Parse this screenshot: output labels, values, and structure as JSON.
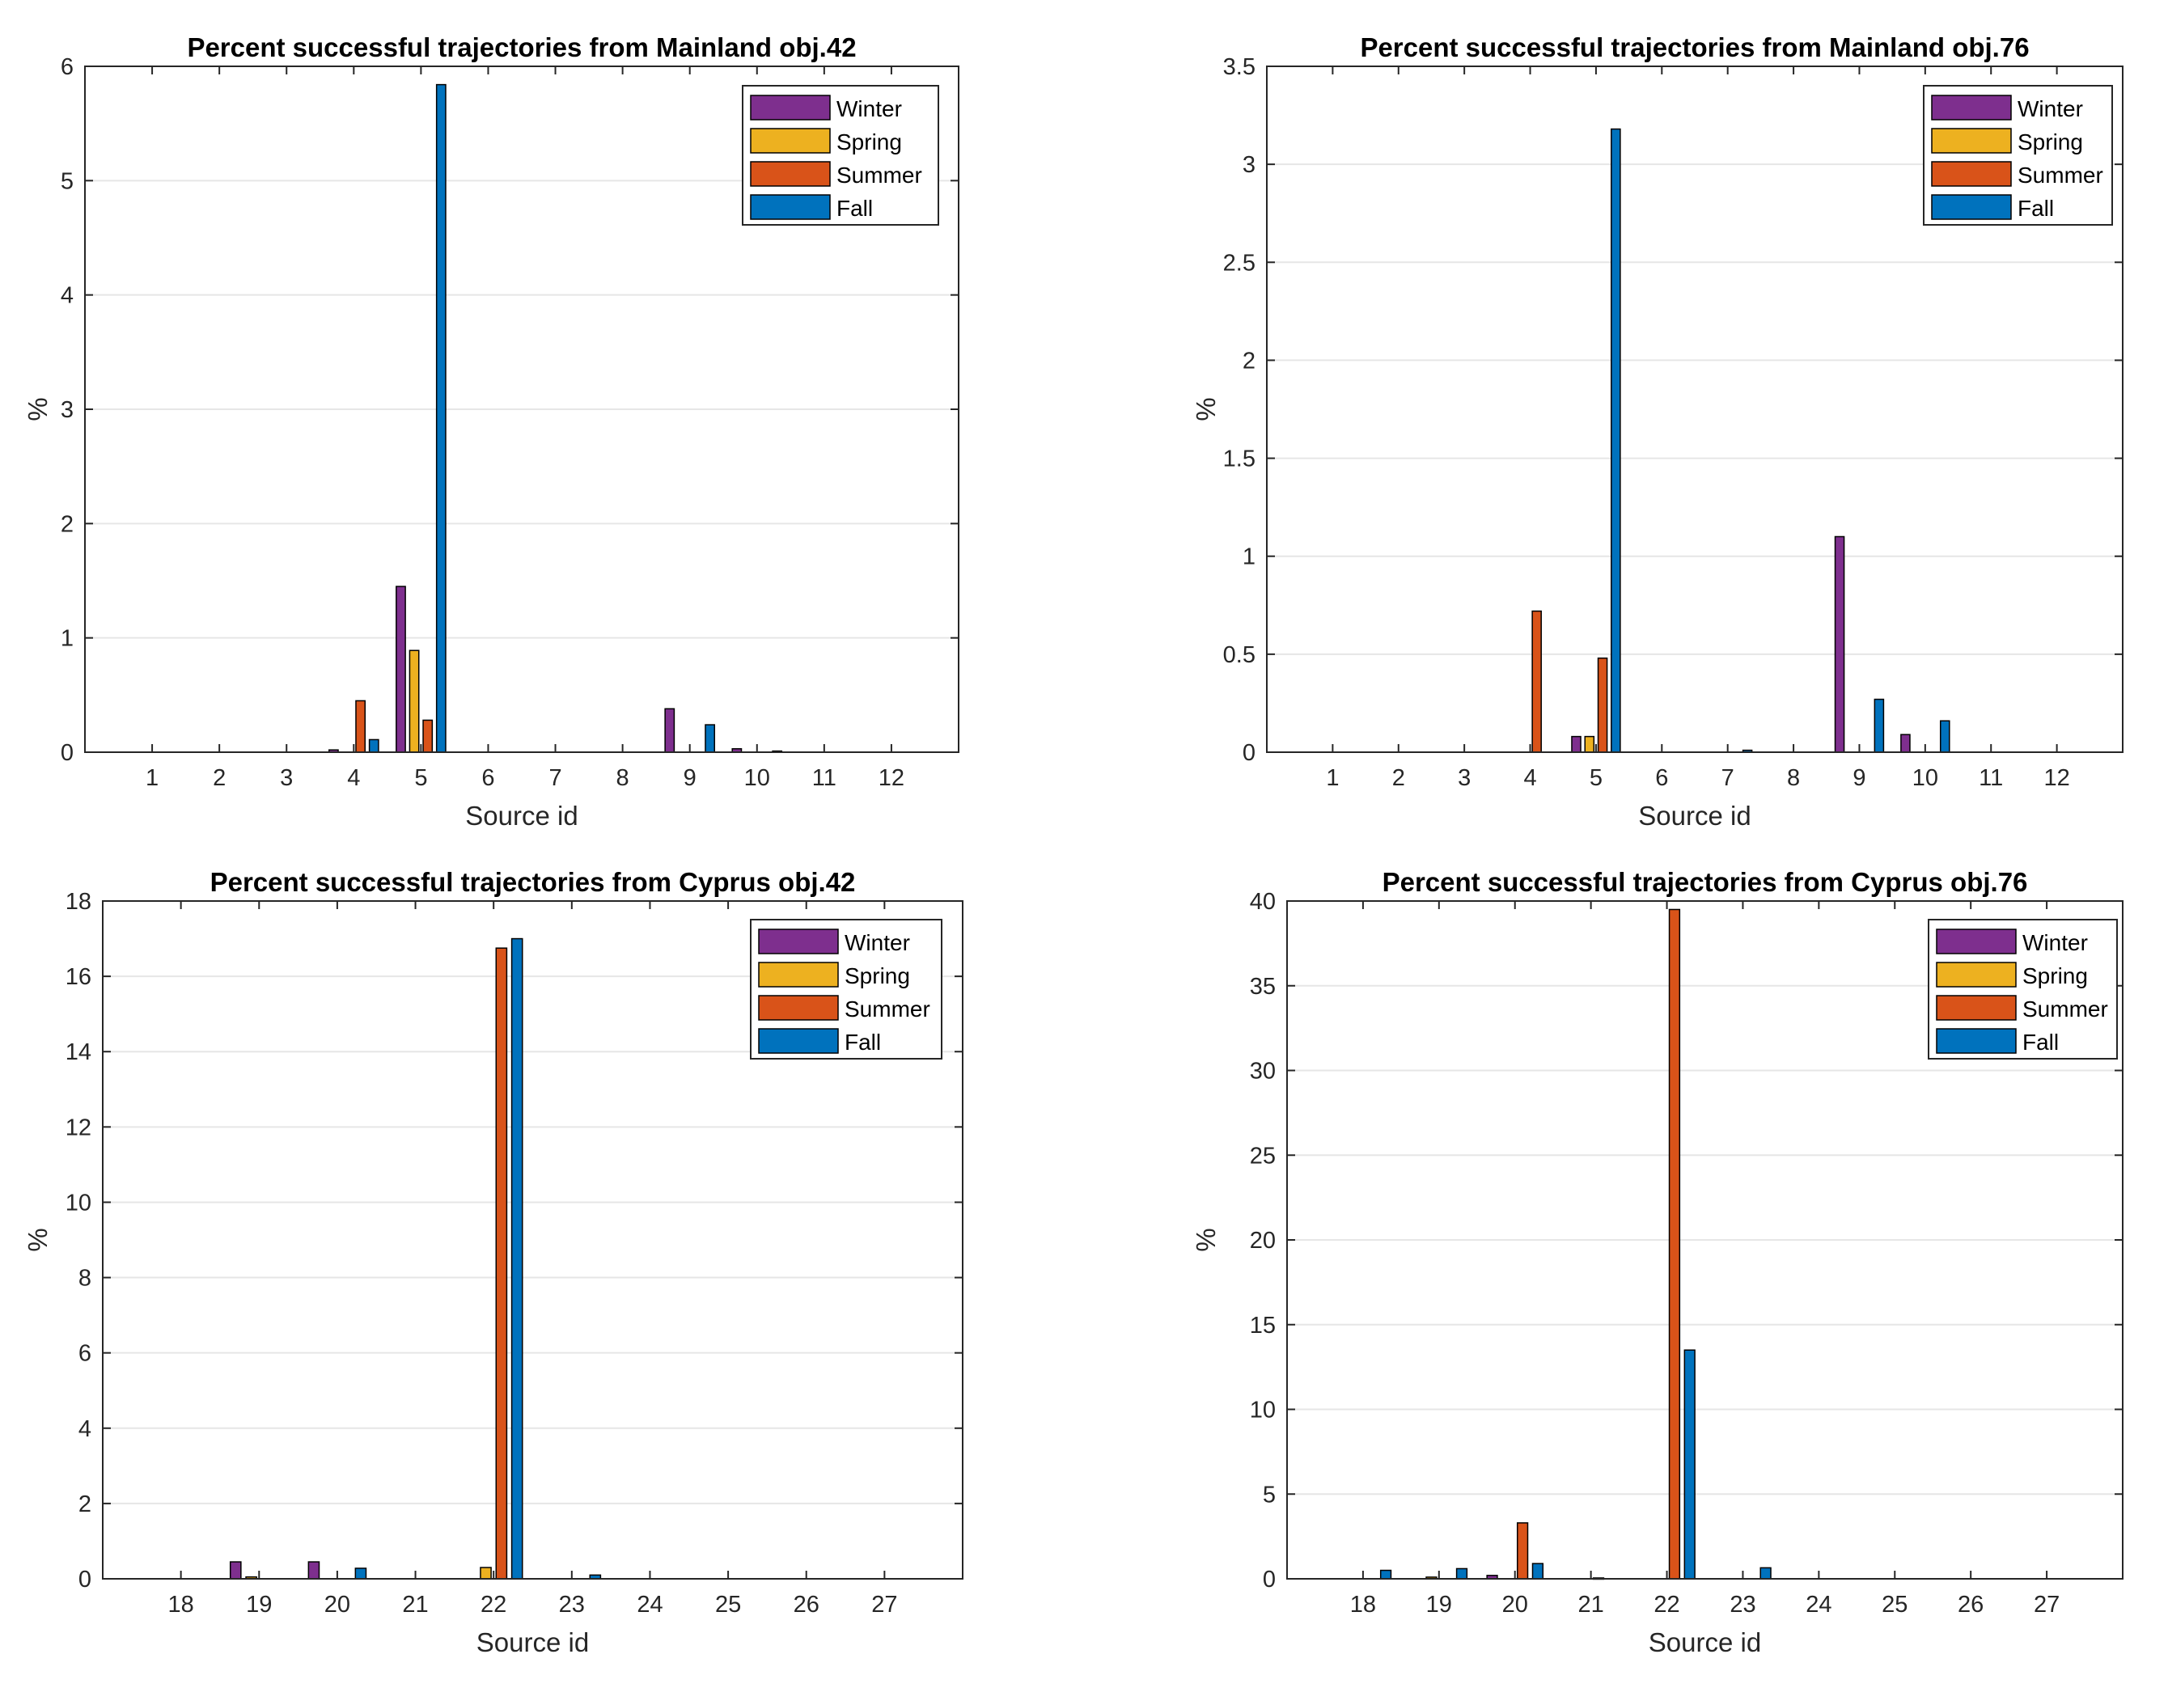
{
  "figure": {
    "series_colors": {
      "Winter": "#7E2F8E",
      "Spring": "#EDB120",
      "Summer": "#D95319",
      "Fall": "#0072BD"
    }
  },
  "chart_data": [
    {
      "type": "bar",
      "title": "Percent successful trajectories from Mainland obj.42",
      "xlabel": "Source id",
      "ylabel": "%",
      "categories": [
        "1",
        "2",
        "3",
        "4",
        "5",
        "6",
        "7",
        "8",
        "9",
        "10",
        "11",
        "12"
      ],
      "ylim": [
        0,
        6
      ],
      "yticks": [
        "0",
        "1",
        "2",
        "3",
        "4",
        "5",
        "6"
      ],
      "grid": true,
      "legend_position": "top-right",
      "series": [
        {
          "name": "Winter",
          "color": "#7E2F8E",
          "values": [
            0,
            0,
            0,
            0.02,
            1.45,
            0,
            0,
            0,
            0.38,
            0.03,
            0,
            0
          ]
        },
        {
          "name": "Spring",
          "color": "#EDB120",
          "values": [
            0,
            0,
            0,
            0,
            0.89,
            0,
            0,
            0,
            0,
            0,
            0,
            0
          ]
        },
        {
          "name": "Summer",
          "color": "#D95319",
          "values": [
            0,
            0,
            0,
            0.45,
            0.28,
            0,
            0,
            0,
            0,
            0,
            0,
            0
          ]
        },
        {
          "name": "Fall",
          "color": "#0072BD",
          "values": [
            0,
            0,
            0,
            0.11,
            5.84,
            0,
            0,
            0,
            0.24,
            0.01,
            0,
            0
          ]
        }
      ]
    },
    {
      "type": "bar",
      "title": "Percent successful trajectories from Mainland obj.76",
      "xlabel": "Source id",
      "ylabel": "%",
      "categories": [
        "1",
        "2",
        "3",
        "4",
        "5",
        "6",
        "7",
        "8",
        "9",
        "10",
        "11",
        "12"
      ],
      "ylim": [
        0,
        3.5
      ],
      "yticks": [
        "0",
        "0.5",
        "1",
        "1.5",
        "2",
        "2.5",
        "3",
        "3.5"
      ],
      "grid": true,
      "legend_position": "top-right",
      "series": [
        {
          "name": "Winter",
          "color": "#7E2F8E",
          "values": [
            0,
            0,
            0,
            0,
            0.08,
            0,
            0,
            0,
            1.1,
            0.09,
            0,
            0
          ]
        },
        {
          "name": "Spring",
          "color": "#EDB120",
          "values": [
            0,
            0,
            0,
            0,
            0.08,
            0,
            0,
            0,
            0,
            0,
            0,
            0
          ]
        },
        {
          "name": "Summer",
          "color": "#D95319",
          "values": [
            0,
            0,
            0,
            0.72,
            0.48,
            0,
            0,
            0,
            0,
            0,
            0,
            0
          ]
        },
        {
          "name": "Fall",
          "color": "#0072BD",
          "values": [
            0,
            0,
            0,
            0,
            3.18,
            0,
            0.01,
            0,
            0.27,
            0.16,
            0,
            0
          ]
        }
      ]
    },
    {
      "type": "bar",
      "title": "Percent successful trajectories from Cyprus obj.42",
      "xlabel": "Source id",
      "ylabel": "%",
      "categories": [
        "18",
        "19",
        "20",
        "21",
        "22",
        "23",
        "24",
        "25",
        "26",
        "27"
      ],
      "ylim": [
        0,
        18
      ],
      "yticks": [
        "0",
        "2",
        "4",
        "6",
        "8",
        "10",
        "12",
        "14",
        "16",
        "18"
      ],
      "grid": true,
      "legend_position": "top-right",
      "series": [
        {
          "name": "Winter",
          "color": "#7E2F8E",
          "values": [
            0,
            0.45,
            0.45,
            0,
            0,
            0,
            0,
            0,
            0,
            0
          ]
        },
        {
          "name": "Spring",
          "color": "#EDB120",
          "values": [
            0,
            0.05,
            0,
            0,
            0.3,
            0,
            0,
            0,
            0,
            0
          ]
        },
        {
          "name": "Summer",
          "color": "#D95319",
          "values": [
            0,
            0,
            0,
            0,
            16.75,
            0,
            0,
            0,
            0,
            0
          ]
        },
        {
          "name": "Fall",
          "color": "#0072BD",
          "values": [
            0,
            0,
            0.28,
            0,
            17.0,
            0.1,
            0,
            0,
            0,
            0
          ]
        }
      ]
    },
    {
      "type": "bar",
      "title": "Percent successful trajectories from Cyprus obj.76",
      "xlabel": "Source id",
      "ylabel": "%",
      "categories": [
        "18",
        "19",
        "20",
        "21",
        "22",
        "23",
        "24",
        "25",
        "26",
        "27"
      ],
      "ylim": [
        0,
        40
      ],
      "yticks": [
        "0",
        "5",
        "10",
        "15",
        "20",
        "25",
        "30",
        "35",
        "40"
      ],
      "grid": true,
      "legend_position": "top-right",
      "series": [
        {
          "name": "Winter",
          "color": "#7E2F8E",
          "values": [
            0,
            0,
            0.2,
            0,
            0,
            0,
            0,
            0,
            0,
            0
          ]
        },
        {
          "name": "Spring",
          "color": "#EDB120",
          "values": [
            0,
            0.1,
            0,
            0,
            0,
            0,
            0,
            0,
            0,
            0
          ]
        },
        {
          "name": "Summer",
          "color": "#D95319",
          "values": [
            0,
            0,
            3.3,
            0.05,
            39.5,
            0,
            0,
            0,
            0,
            0
          ]
        },
        {
          "name": "Fall",
          "color": "#0072BD",
          "values": [
            0.5,
            0.6,
            0.9,
            0,
            13.5,
            0.65,
            0,
            0,
            0,
            0
          ]
        }
      ]
    }
  ]
}
